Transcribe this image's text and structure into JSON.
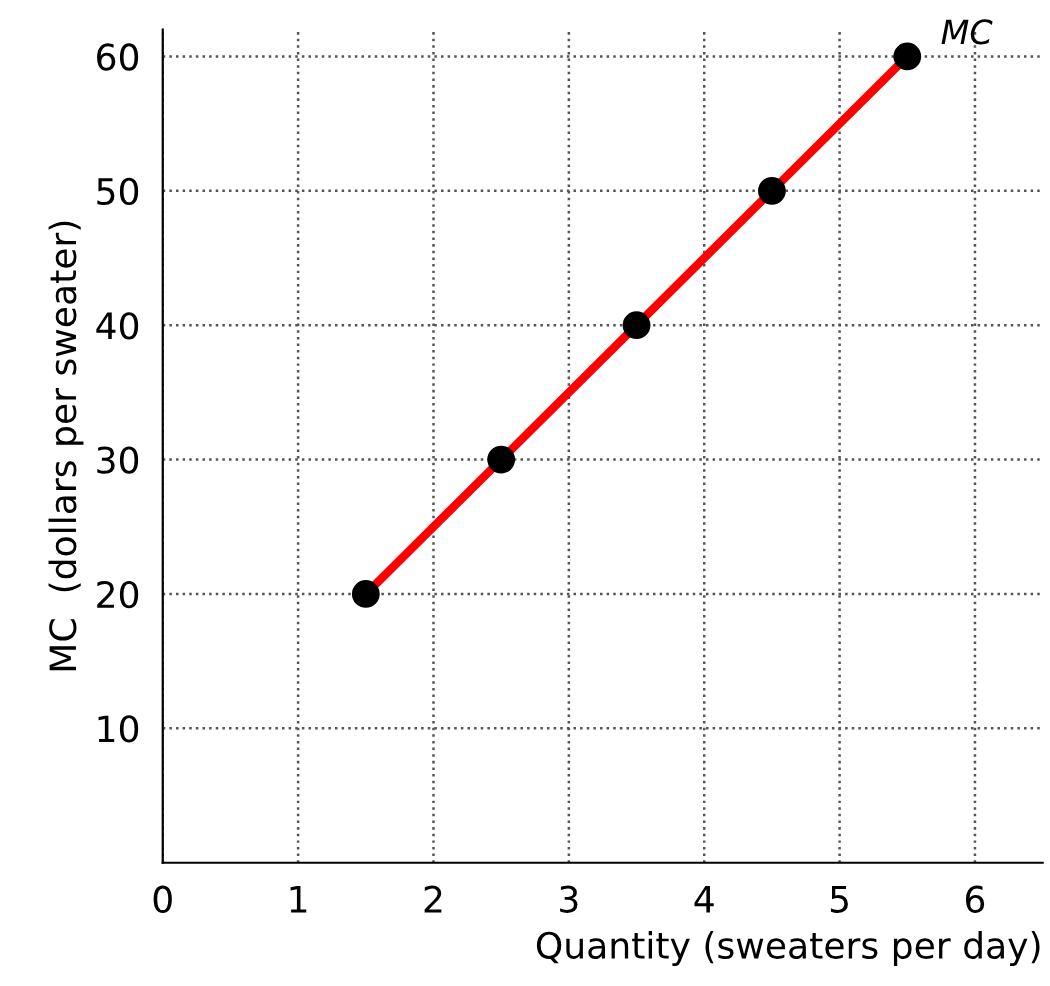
{
  "chart_data": {
    "type": "line",
    "xlabel": "Quantity (sweaters per day)",
    "ylabel": "MC  (dollars per sweater)",
    "x": [
      1.5,
      2.5,
      3.5,
      4.5,
      5.5
    ],
    "series": [
      {
        "name": "MC",
        "color": "#ff0000",
        "values": [
          20,
          30,
          40,
          50,
          60
        ]
      }
    ],
    "xlim": [
      0,
      6.5
    ],
    "ylim": [
      0,
      62
    ],
    "xticks": [
      0,
      1,
      2,
      3,
      4,
      5,
      6
    ],
    "yticks": [
      10,
      20,
      30,
      40,
      50,
      60
    ],
    "grid": true,
    "marker": "circle",
    "line_style": "solid",
    "legend": false
  }
}
